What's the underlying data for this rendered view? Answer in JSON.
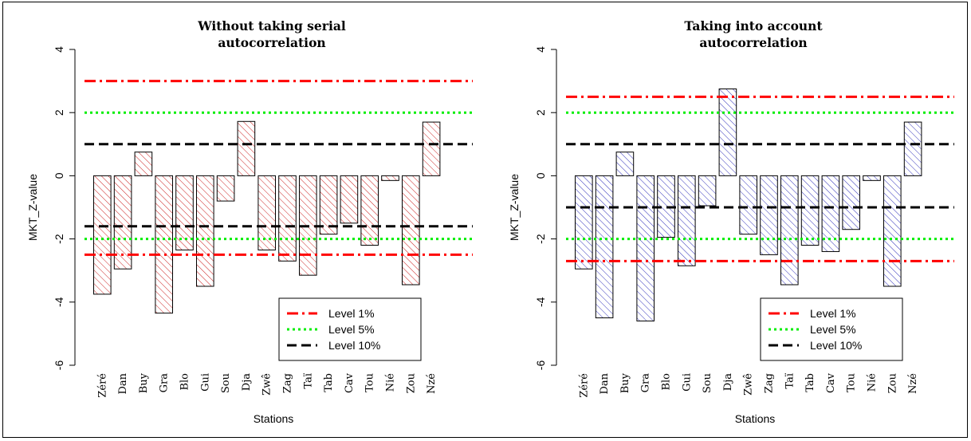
{
  "chart_data": [
    {
      "type": "bar",
      "title_lines": [
        "Without taking serial",
        "autocorrelation"
      ],
      "xlabel": "Stations",
      "ylabel": "MKT_Z-value",
      "ylim": [
        -6,
        4
      ],
      "yticks": [
        4,
        2,
        0,
        -2,
        -4,
        -6
      ],
      "categories": [
        "Zéré",
        "Dan",
        "Buy",
        "Gra",
        "Blo",
        "Gui",
        "Sou",
        "Dja",
        "Zwê",
        "Zag",
        "Taï",
        "Tab",
        "Cav",
        "Tou",
        "Nié",
        "Zou",
        "Nzé"
      ],
      "values": [
        -3.75,
        -2.95,
        0.75,
        -4.35,
        -2.35,
        -3.5,
        -0.8,
        1.72,
        -2.35,
        -2.7,
        -3.15,
        -1.85,
        -1.5,
        -2.2,
        -0.15,
        -3.45,
        1.7
      ],
      "bar_color": "#cc2222",
      "reference_lines": [
        {
          "y": 3.0,
          "color": "#ff0000",
          "style": "dashdot"
        },
        {
          "y": -2.5,
          "color": "#ff0000",
          "style": "dashdot"
        },
        {
          "y": 2.0,
          "color": "#00ee00",
          "style": "dotted"
        },
        {
          "y": -2.0,
          "color": "#00ee00",
          "style": "dotted"
        },
        {
          "y": 1.0,
          "color": "#000000",
          "style": "dashed"
        },
        {
          "y": -1.6,
          "color": "#000000",
          "style": "dashed"
        }
      ],
      "legend": {
        "position": "bottom-right",
        "entries": [
          {
            "label": "Level 1%",
            "color": "#ff0000",
            "style": "dashdot"
          },
          {
            "label": "Level 5%",
            "color": "#00ee00",
            "style": "dotted"
          },
          {
            "label": "Level 10%",
            "color": "#000000",
            "style": "dashed"
          }
        ]
      }
    },
    {
      "type": "bar",
      "title_lines": [
        "Taking into account",
        "autocorrelation"
      ],
      "xlabel": "Stations",
      "ylabel": "MKT_Z-value",
      "ylim": [
        -6,
        4
      ],
      "yticks": [
        4,
        2,
        0,
        -2,
        -4,
        -6
      ],
      "categories": [
        "Zéré",
        "Dan",
        "Buy",
        "Gra",
        "Blo",
        "Gui",
        "Sou",
        "Dja",
        "Zwê",
        "Zag",
        "Taï",
        "Tab",
        "Cav",
        "Tou",
        "Nié",
        "Zou",
        "Nzé"
      ],
      "values": [
        -2.95,
        -4.5,
        0.75,
        -4.6,
        -1.95,
        -2.85,
        -0.95,
        2.75,
        -1.85,
        -2.5,
        -3.45,
        -2.2,
        -2.4,
        -1.7,
        -0.15,
        -3.5,
        1.7
      ],
      "bar_color": "#3333bb",
      "reference_lines": [
        {
          "y": 2.5,
          "color": "#ff0000",
          "style": "dashdot"
        },
        {
          "y": -2.7,
          "color": "#ff0000",
          "style": "dashdot"
        },
        {
          "y": 2.0,
          "color": "#00ee00",
          "style": "dotted"
        },
        {
          "y": -2.0,
          "color": "#00ee00",
          "style": "dotted"
        },
        {
          "y": 1.0,
          "color": "#000000",
          "style": "dashed"
        },
        {
          "y": -1.0,
          "color": "#000000",
          "style": "dashed"
        }
      ],
      "legend": {
        "position": "bottom-right",
        "entries": [
          {
            "label": "Level 1%",
            "color": "#ff0000",
            "style": "dashdot"
          },
          {
            "label": "Level 5%",
            "color": "#00ee00",
            "style": "dotted"
          },
          {
            "label": "Level 10%",
            "color": "#000000",
            "style": "dashed"
          }
        ]
      }
    }
  ]
}
